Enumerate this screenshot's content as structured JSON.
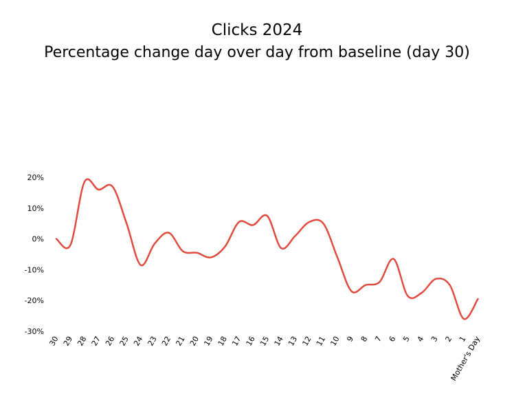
{
  "chart_data": {
    "type": "line",
    "title": "Clicks 2024",
    "subtitle": "Percentage change day over day from baseline (day 30)",
    "xlabel": "",
    "ylabel": "",
    "categories": [
      "30",
      "29",
      "28",
      "27",
      "26",
      "25",
      "24",
      "23",
      "22",
      "21",
      "20",
      "19",
      "18",
      "17",
      "16",
      "15",
      "14",
      "13",
      "12",
      "11",
      "10",
      "9",
      "8",
      "7",
      "6",
      "5",
      "4",
      "3",
      "2",
      "1",
      "Mother's Day"
    ],
    "series": [
      {
        "values": [
          0,
          -2,
          18.5,
          16,
          17,
          5,
          -8.5,
          -1.5,
          2,
          -4,
          -4.5,
          -6,
          -2.5,
          5.5,
          4.5,
          7.5,
          -3,
          1,
          5.5,
          5,
          -6,
          -17,
          -15,
          -14,
          -6.5,
          -18.5,
          -17.5,
          -13,
          -15,
          -26,
          -19.5
        ]
      }
    ],
    "ylim": [
      -30,
      20
    ],
    "yticks": [
      -30,
      -20,
      -10,
      0,
      10,
      20
    ],
    "ytick_labels": [
      "-30%",
      "-20%",
      "-10%",
      "0%",
      "10%",
      "20%"
    ],
    "grid": false,
    "line_color": "#e04b3f"
  }
}
